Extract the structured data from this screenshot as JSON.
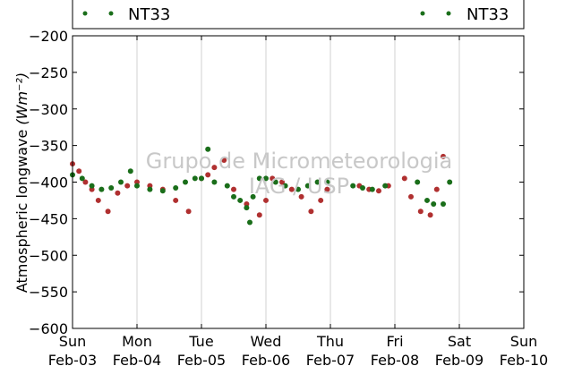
{
  "chart_data": {
    "type": "scatter",
    "title": "",
    "ylabel": "Atmospheric longwave",
    "ylabel_units": "(Wm⁻²)",
    "ylim": [
      -600,
      -200
    ],
    "yticks": [
      -200,
      -250,
      -300,
      -350,
      -400,
      -450,
      -500,
      -550,
      -600
    ],
    "ytick_labels": [
      "−200",
      "−250",
      "−300",
      "−350",
      "−400",
      "−450",
      "−500",
      "−550",
      "−600"
    ],
    "xlim": [
      "2013-02-03",
      "2013-02-10"
    ],
    "xticks": [
      {
        "day": "Sun",
        "date": "Feb-03"
      },
      {
        "day": "Mon",
        "date": "Feb-04"
      },
      {
        "day": "Tue",
        "date": "Feb-05"
      },
      {
        "day": "Wed",
        "date": "Feb-06"
      },
      {
        "day": "Thu",
        "date": "Feb-07"
      },
      {
        "day": "Fri",
        "date": "Feb-08"
      },
      {
        "day": "Sat",
        "date": "Feb-09"
      },
      {
        "day": "Sun",
        "date": "Feb-10"
      }
    ],
    "grid": "vertical",
    "legend": {
      "placement": "top",
      "entries": [
        "NT33",
        "NT33"
      ]
    },
    "watermark": [
      "Grupo de Micrometeorologia",
      "IAG / USP"
    ],
    "series": [
      {
        "color": "#b03030",
        "x": [
          0.0,
          0.1,
          0.2,
          0.3,
          0.4,
          0.55,
          0.7,
          0.85,
          1.0,
          1.2,
          1.4,
          1.6,
          1.8,
          2.0,
          2.1,
          2.2,
          2.35,
          2.5,
          2.7,
          2.9,
          3.0,
          3.1,
          3.25,
          3.4,
          3.55,
          3.7,
          3.85,
          3.95,
          4.45,
          4.6,
          4.75,
          4.9,
          5.15,
          5.25,
          5.4,
          5.55,
          5.65,
          5.75
        ],
        "y": [
          -375,
          -385,
          -400,
          -410,
          -425,
          -440,
          -415,
          -405,
          -400,
          -405,
          -410,
          -425,
          -440,
          -395,
          -390,
          -380,
          -370,
          -410,
          -430,
          -445,
          -425,
          -395,
          -400,
          -410,
          -420,
          -440,
          -425,
          -410,
          -405,
          -410,
          -412,
          -405,
          -395,
          -420,
          -440,
          -445,
          -410,
          -365
        ]
      },
      {
        "color": "#1a6e1a",
        "x": [
          0.0,
          0.15,
          0.3,
          0.45,
          0.6,
          0.75,
          0.9,
          1.0,
          1.2,
          1.4,
          1.6,
          1.75,
          1.9,
          2.0,
          2.1,
          2.2,
          2.4,
          2.5,
          2.6,
          2.7,
          2.75,
          2.8,
          2.9,
          3.0,
          3.15,
          3.3,
          3.5,
          3.65,
          3.8,
          3.95,
          4.35,
          4.5,
          4.65,
          4.85,
          5.35,
          5.5,
          5.6,
          5.75,
          5.85
        ],
        "y": [
          -390,
          -395,
          -405,
          -410,
          -408,
          -400,
          -385,
          -405,
          -410,
          -412,
          -408,
          -400,
          -395,
          -395,
          -355,
          -400,
          -405,
          -420,
          -425,
          -435,
          -455,
          -420,
          -395,
          -395,
          -400,
          -405,
          -410,
          -405,
          -400,
          -400,
          -405,
          -408,
          -410,
          -405,
          -400,
          -425,
          -430,
          -430,
          -400
        ]
      }
    ]
  }
}
